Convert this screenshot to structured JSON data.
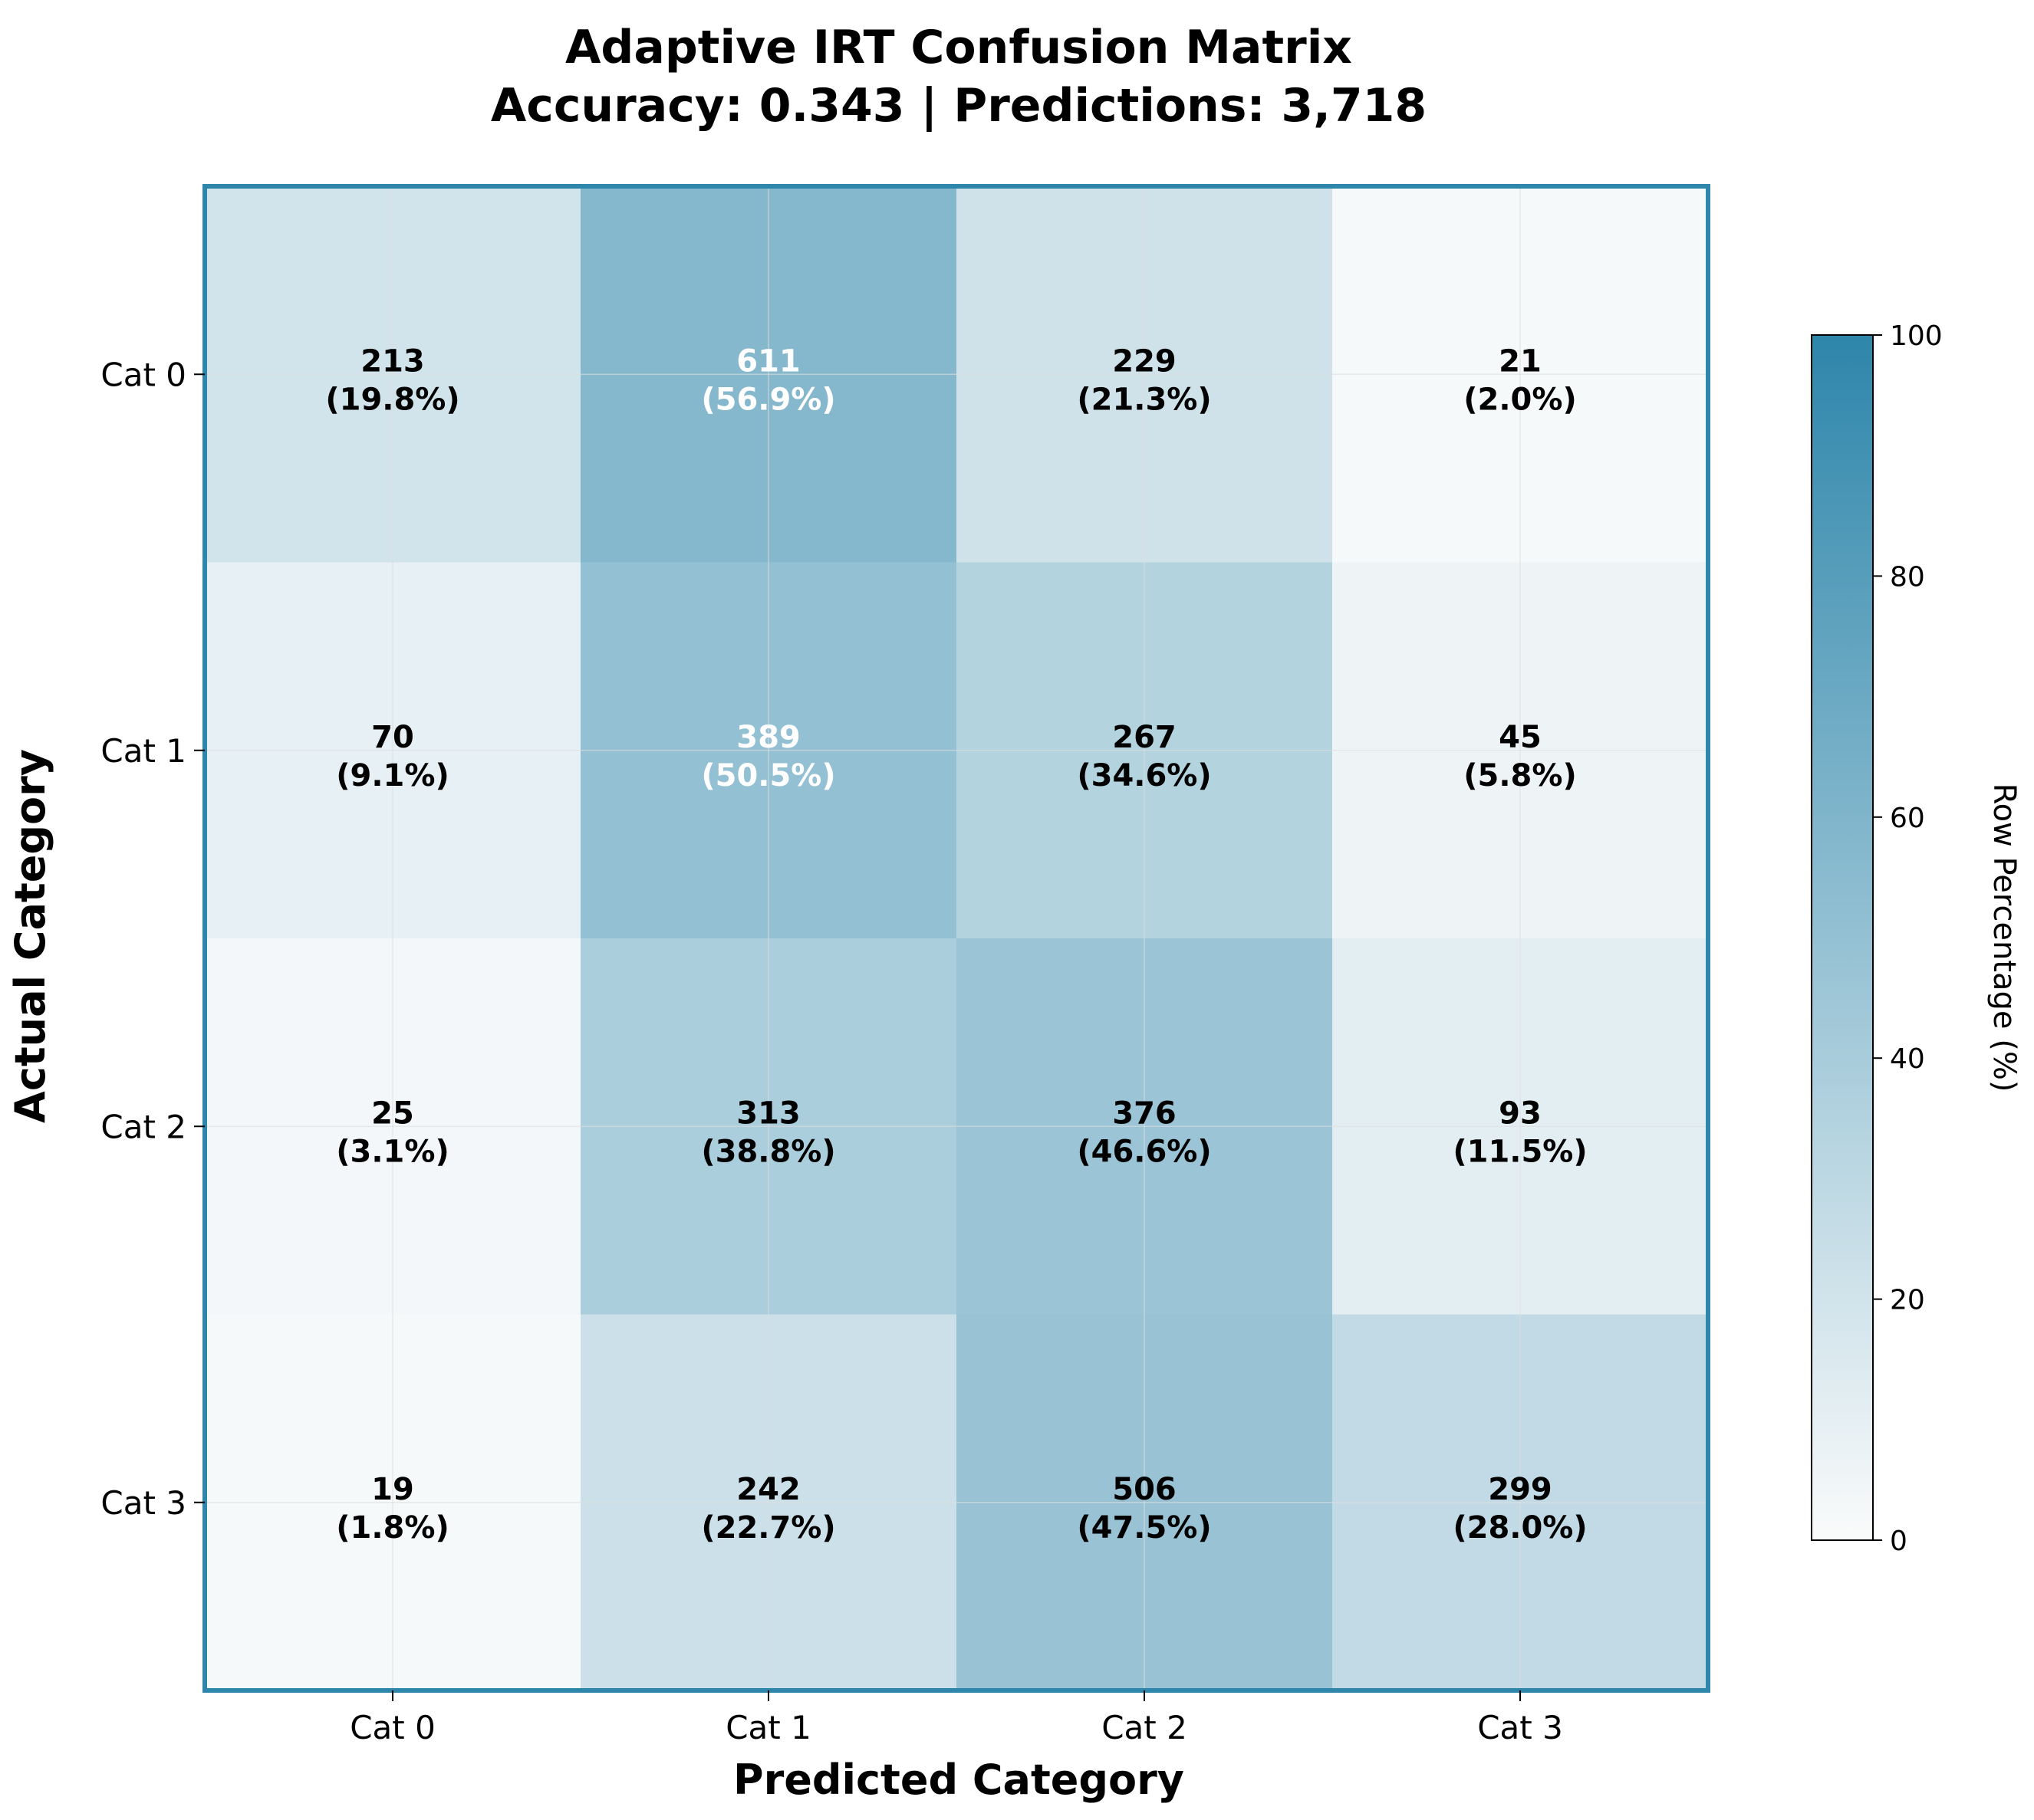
{
  "chart_data": {
    "type": "heatmap",
    "title_line1": "Adaptive IRT Confusion Matrix",
    "title_line2": "Accuracy: 0.343 | Predictions: 3,718",
    "xlabel": "Predicted Category",
    "ylabel": "Actual Category",
    "x_categories": [
      "Cat 0",
      "Cat 1",
      "Cat 2",
      "Cat 3"
    ],
    "y_categories": [
      "Cat 0",
      "Cat 1",
      "Cat 2",
      "Cat 3"
    ],
    "counts": [
      [
        213,
        611,
        229,
        21
      ],
      [
        70,
        389,
        267,
        45
      ],
      [
        25,
        313,
        376,
        93
      ],
      [
        19,
        242,
        506,
        299
      ]
    ],
    "percentages": [
      [
        19.8,
        56.9,
        21.3,
        2.0
      ],
      [
        9.1,
        50.5,
        34.6,
        5.8
      ],
      [
        3.1,
        38.8,
        46.6,
        11.5
      ],
      [
        1.8,
        22.7,
        47.5,
        28.0
      ]
    ],
    "colorbar": {
      "label": "Row Percentage (%)",
      "range": [
        0,
        100
      ],
      "ticks": [
        0,
        20,
        40,
        60,
        80,
        100
      ]
    },
    "colors": {
      "low": "#fafbfb",
      "high": "#2e86ab",
      "frame": "#2e86ab",
      "grid": "#dddddd",
      "text_dark": "#000000",
      "text_light": "#ffffff"
    },
    "light_text_threshold": 50,
    "grid": true
  }
}
